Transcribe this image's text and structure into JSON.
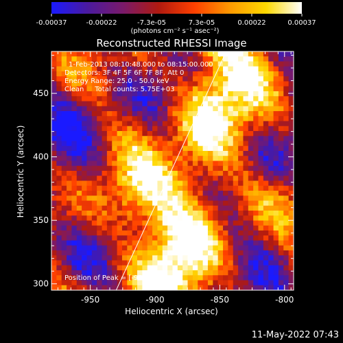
{
  "colorbar": {
    "ticks": [
      "-0.00037",
      "-0.00022",
      "-7.3e-05",
      "7.3e-05",
      "0.00022",
      "0.00037"
    ],
    "units_label": "(photons cm⁻² s⁻¹ asec⁻²)",
    "range": [
      -0.00037,
      0.00037
    ],
    "colors": [
      "#1a1aff",
      "#4a1aa0",
      "#7a1a6a",
      "#b01a10",
      "#ff4000",
      "#ff9a00",
      "#ffd800",
      "#ffffff"
    ]
  },
  "annotations": {
    "time": "1-Feb-2013 08:10:48.000 to 08:15:00.000",
    "detectors": "Detectors: 3F 4F 5F 6F 7F 8F, Att 0",
    "energy": "Energy Range: 25.0 - 50.0 keV",
    "clean": "Clean     Total counts: 5.75E+03",
    "peak": "Position of Peak = [-939,383]"
  },
  "date_stamp": "11-May-2022 07:43",
  "chart_data": {
    "type": "heatmap",
    "title": "Reconstructed RHESSI Image",
    "xlabel": "Heliocentric X (arcsec)",
    "ylabel": "Heliocentric Y (arcsec)",
    "xlim": [
      -980,
      -793
    ],
    "ylim": [
      295,
      483
    ],
    "xticks": [
      -950,
      -900,
      -850,
      -800
    ],
    "xtick_labels": [
      "-950",
      "-900",
      "-850",
      "-800"
    ],
    "yticks": [
      300,
      350,
      400,
      450
    ],
    "ytick_labels": [
      "300",
      "350",
      "400",
      "450"
    ],
    "limb_line": [
      [
        -930,
        295
      ],
      [
        -845,
        483
      ]
    ],
    "peak_position": [
      -939,
      383
    ],
    "grid": false
  }
}
